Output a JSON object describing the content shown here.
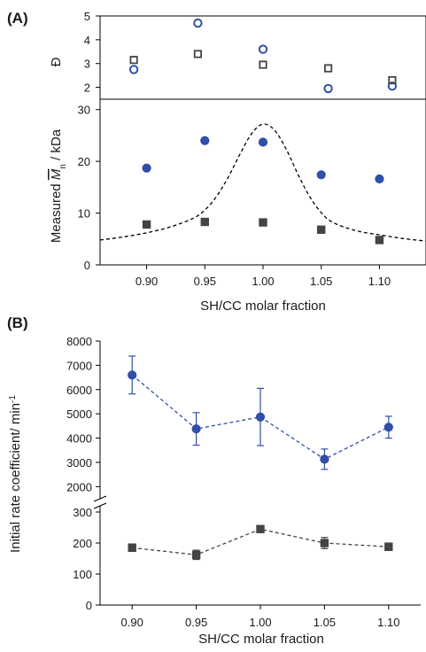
{
  "colors": {
    "blue": "#2f4fa8",
    "gray": "#444444",
    "axis": "#000000"
  },
  "chart_data": [
    {
      "panel": "(A)",
      "type": "scatter",
      "subplot": "dispersity",
      "ylabel": "Đ",
      "xlim": [
        0.86,
        1.14
      ],
      "ylim": [
        1.5,
        5.0
      ],
      "yticks": [
        "2",
        "3",
        "4",
        "5"
      ],
      "marker_style": "open",
      "series": [
        {
          "x": [
            0.889,
            0.944,
            1.0,
            1.056,
            1.111
          ],
          "values": [
            2.75,
            4.7,
            3.6,
            1.95,
            2.05
          ],
          "marker": "circle",
          "color": "#2f4fa8"
        },
        {
          "x": [
            0.889,
            0.944,
            1.0,
            1.056,
            1.111
          ],
          "values": [
            3.15,
            3.4,
            2.95,
            2.8,
            2.3
          ],
          "marker": "square",
          "color": "#444444"
        }
      ]
    },
    {
      "panel": "(A)",
      "type": "scatter",
      "subplot": "molar-mass",
      "ylabel": "Measured M̅n / kDa",
      "xlabel": "SH/CC molar fraction",
      "xlim": [
        0.86,
        1.14
      ],
      "ylim": [
        0,
        32
      ],
      "xticks": [
        "0.90",
        "0.95",
        "1.00",
        "1.05",
        "1.10"
      ],
      "yticks": [
        "0",
        "10",
        "20",
        "30"
      ],
      "marker_style": "filled",
      "series": [
        {
          "x": [
            0.9,
            0.95,
            1.0,
            1.05,
            1.1
          ],
          "values": [
            18.7,
            24.0,
            23.7,
            17.4,
            16.6
          ],
          "marker": "circle",
          "color": "#2f4fa8"
        },
        {
          "x": [
            0.9,
            0.95,
            1.0,
            1.05,
            1.1
          ],
          "values": [
            7.8,
            8.3,
            8.2,
            6.8,
            4.8
          ],
          "marker": "square",
          "color": "#444444"
        }
      ],
      "curve": {
        "style": "dashed",
        "x": [
          0.86,
          0.88,
          0.9,
          0.92,
          0.94,
          0.95,
          0.96,
          0.97,
          0.98,
          0.99,
          1.0,
          1.01,
          1.02,
          1.03,
          1.04,
          1.05,
          1.06,
          1.08,
          1.1,
          1.12,
          1.14
        ],
        "values": [
          4.8,
          5.4,
          6.2,
          7.3,
          9.0,
          10.6,
          13.2,
          16.9,
          21.3,
          25.3,
          27.2,
          26.0,
          22.3,
          17.5,
          13.2,
          10.1,
          8.2,
          6.6,
          5.8,
          5.1,
          4.6
        ]
      }
    },
    {
      "panel": "(B)",
      "type": "line",
      "subplot": "rate-upper",
      "ylabel": "Initial rate coefficient/ min⁻¹",
      "xlim": [
        0.875,
        1.125
      ],
      "ylim": [
        1500,
        8000
      ],
      "yticks": [
        "2000",
        "3000",
        "4000",
        "5000",
        "6000",
        "7000",
        "8000"
      ],
      "series": [
        {
          "x": [
            0.9,
            0.95,
            1.0,
            1.05,
            1.1
          ],
          "values": [
            6600,
            4380,
            4870,
            3130,
            4450
          ],
          "errors": [
            780,
            670,
            1180,
            420,
            450
          ],
          "marker": "circle",
          "color": "#2f4fa8",
          "line": "dashed"
        }
      ]
    },
    {
      "panel": "(B)",
      "type": "line",
      "subplot": "rate-lower",
      "xlabel": "SH/CC molar fraction",
      "xlim": [
        0.875,
        1.125
      ],
      "ylim": [
        0,
        320
      ],
      "xticks": [
        "0.90",
        "0.95",
        "1.00",
        "1.05",
        "1.10"
      ],
      "yticks": [
        "0",
        "100",
        "200",
        "300"
      ],
      "series": [
        {
          "x": [
            0.9,
            0.95,
            1.0,
            1.05,
            1.1
          ],
          "values": [
            185,
            162,
            245,
            200,
            188
          ],
          "errors": [
            12,
            15,
            6,
            18,
            12
          ],
          "marker": "square",
          "color": "#444444",
          "line": "dashed"
        }
      ]
    }
  ],
  "labels": {
    "panel_a": "(A)",
    "panel_b": "(B)",
    "dispersity_ylabel": "Đ",
    "mn_ylabel_prefix": "Measured ",
    "mn_ylabel_symbol": "M",
    "mn_ylabel_sub": "n",
    "mn_ylabel_suffix": " / kDa",
    "xlabel_a": "SH/CC molar fraction",
    "xlabel_b": "SH/CC molar fraction",
    "rate_ylabel": "Initial rate coefficient/ min",
    "rate_ylabel_sup": "-1"
  }
}
